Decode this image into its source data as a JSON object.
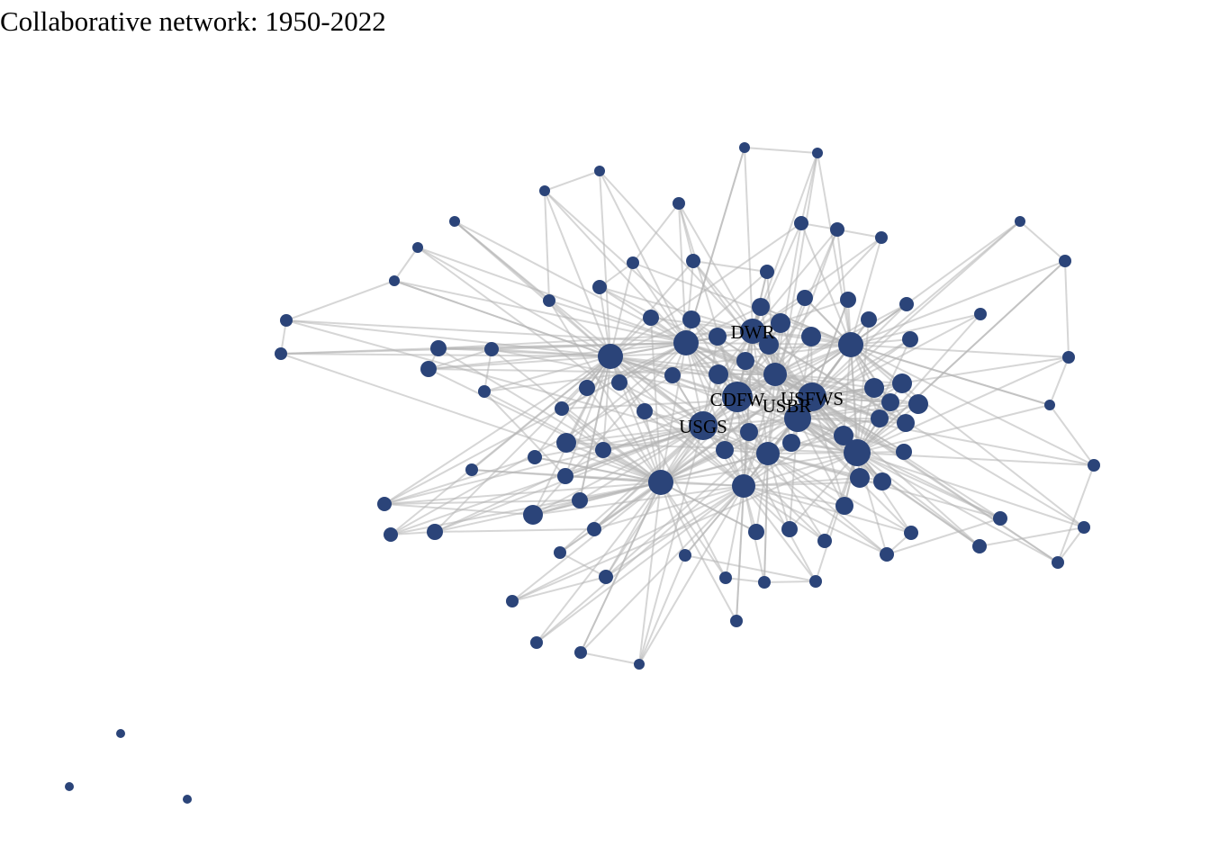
{
  "title": "Collaborative network: 1950-2022",
  "style": {
    "node_color": "#2b4479",
    "edge_color": "#b4b4b4"
  },
  "network": {
    "labels": [
      "DWR",
      "CDFW",
      "USFWS",
      "USBR",
      "USGS"
    ]
  }
}
